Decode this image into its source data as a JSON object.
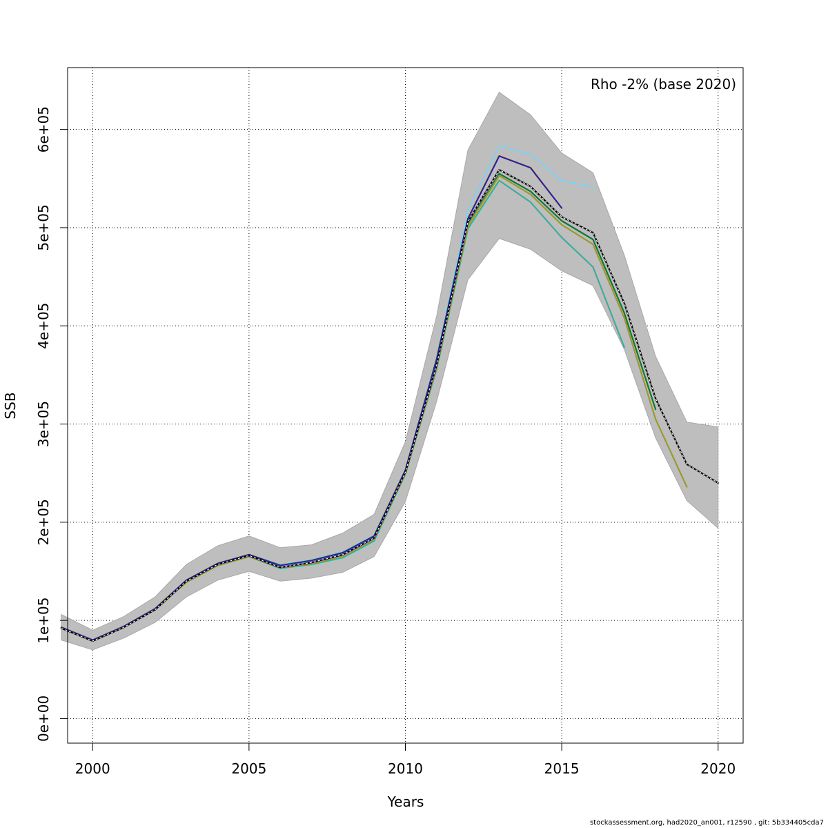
{
  "footer": "stockassessment.org, had2020_an001, r12590 , git: 5b334405cda7",
  "chart_data": {
    "type": "line",
    "title": "",
    "xlabel": "Years",
    "ylabel": "SSB",
    "xlim": [
      1999.2,
      2020.8
    ],
    "ylim": [
      -25000,
      663000
    ],
    "grid": true,
    "legend": {
      "position": "top-right",
      "text": "Rho -2% (base 2020)"
    },
    "x_ticks": [
      {
        "value": 2000,
        "label": "2000"
      },
      {
        "value": 2005,
        "label": "2005"
      },
      {
        "value": 2010,
        "label": "2010"
      },
      {
        "value": 2015,
        "label": "2015"
      },
      {
        "value": 2020,
        "label": "2020"
      }
    ],
    "y_ticks": [
      {
        "value": 0,
        "label": "0e+00"
      },
      {
        "value": 100000,
        "label": "1e+05"
      },
      {
        "value": 200000,
        "label": "2e+05"
      },
      {
        "value": 300000,
        "label": "3e+05"
      },
      {
        "value": 400000,
        "label": "4e+05"
      },
      {
        "value": 500000,
        "label": "5e+05"
      },
      {
        "value": 600000,
        "label": "6e+05"
      }
    ],
    "years": [
      1999,
      2000,
      2001,
      2002,
      2003,
      2004,
      2005,
      2006,
      2007,
      2008,
      2009,
      2010,
      2011,
      2012,
      2013,
      2014,
      2015,
      2016,
      2017,
      2018,
      2019,
      2020
    ],
    "band": {
      "color": "#bebebe",
      "upper": [
        106000,
        90000,
        104000,
        124000,
        157000,
        176000,
        186000,
        174000,
        177000,
        189000,
        208000,
        282000,
        410000,
        579000,
        638000,
        615000,
        576000,
        556000,
        472000,
        369000,
        302000,
        297000
      ],
      "lower": [
        80000,
        70000,
        82000,
        98000,
        124000,
        141000,
        150000,
        140000,
        143000,
        149000,
        165000,
        221000,
        323000,
        447000,
        489000,
        478000,
        456000,
        441000,
        376000,
        286000,
        222000,
        194000
      ]
    },
    "series": [
      {
        "color": "#87ceeb",
        "dashed": false,
        "values": [
          93000,
          80000,
          94000,
          112000,
          141000,
          158000,
          167000,
          157000,
          162000,
          170000,
          187000,
          253000,
          368000,
          519000,
          584000,
          575000,
          548000,
          542000
        ]
      },
      {
        "color": "#332288",
        "dashed": false,
        "values": [
          93000,
          80000,
          94000,
          112000,
          141000,
          158000,
          167000,
          156000,
          161000,
          169000,
          186000,
          253000,
          366000,
          509000,
          573000,
          561000,
          520000
        ]
      },
      {
        "color": "#44aa99",
        "dashed": false,
        "values": [
          92000,
          79000,
          93000,
          111000,
          139000,
          156000,
          165000,
          153000,
          157000,
          164000,
          181000,
          249000,
          356000,
          499000,
          548000,
          526000,
          490000,
          460000,
          378000
        ]
      },
      {
        "color": "#117733",
        "dashed": false,
        "values": [
          92000,
          79000,
          93000,
          111000,
          139000,
          156000,
          165000,
          154000,
          158000,
          166000,
          183000,
          250000,
          358000,
          503000,
          555000,
          537000,
          507000,
          488000,
          413000,
          315000
        ]
      },
      {
        "color": "#999933",
        "dashed": false,
        "values": [
          92000,
          79000,
          93000,
          111000,
          139000,
          156000,
          165000,
          154000,
          158000,
          166000,
          183000,
          250000,
          358000,
          502000,
          553000,
          534000,
          503000,
          483000,
          408000,
          305000,
          236000
        ]
      },
      {
        "color": "#000000",
        "dashed": true,
        "values": [
          92000,
          79000,
          93000,
          111000,
          140000,
          157000,
          166000,
          154000,
          159000,
          167000,
          184000,
          251000,
          360000,
          506000,
          559000,
          542000,
          511000,
          495000,
          423000,
          326000,
          259000,
          240000
        ]
      }
    ]
  }
}
